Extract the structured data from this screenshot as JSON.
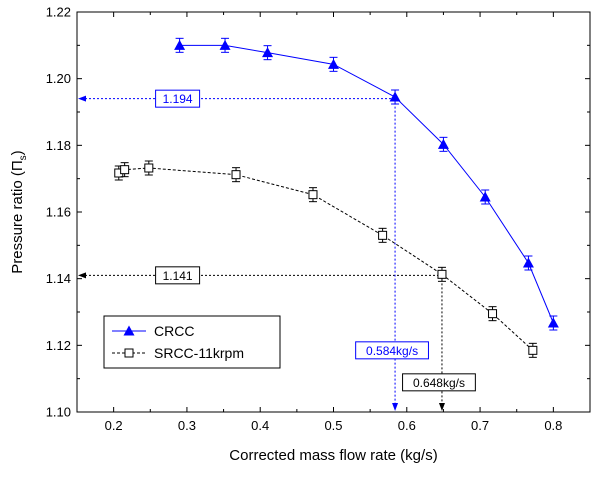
{
  "chart_data": {
    "type": "scatter",
    "xlabel": "Corrected mass flow rate (kg/s)",
    "ylabel_main": "Pressure ratio (Π",
    "ylabel_sub": "s",
    "ylabel_close": ")",
    "xlim": [
      0.15,
      0.85
    ],
    "ylim": [
      1.1,
      1.22
    ],
    "xticks": [
      "0.2",
      "0.3",
      "0.4",
      "0.5",
      "0.6",
      "0.7",
      "0.8"
    ],
    "yticks": [
      "1.10",
      "1.12",
      "1.14",
      "1.16",
      "1.18",
      "1.20",
      "1.22"
    ],
    "legend_position": "lower-left",
    "series": [
      {
        "name": "CRCC",
        "color": "#0000ff",
        "marker": "filled-triangle",
        "line": "solid",
        "points": [
          {
            "x": 0.29,
            "y": 1.21,
            "err": 0.0015
          },
          {
            "x": 0.352,
            "y": 1.21,
            "err": 0.0015
          },
          {
            "x": 0.41,
            "y": 1.2078,
            "err": 0.0015
          },
          {
            "x": 0.5,
            "y": 1.2043,
            "err": 0.0015
          },
          {
            "x": 0.584,
            "y": 1.1945,
            "err": 0.0015
          },
          {
            "x": 0.65,
            "y": 1.1803,
            "err": 0.0015
          },
          {
            "x": 0.707,
            "y": 1.1645,
            "err": 0.0015
          },
          {
            "x": 0.766,
            "y": 1.1447,
            "err": 0.0015
          },
          {
            "x": 0.8,
            "y": 1.1267,
            "err": 0.0015
          }
        ]
      },
      {
        "name": "SRCC-11krpm",
        "color": "#000000",
        "marker": "open-square",
        "line": "dashed",
        "points": [
          {
            "x": 0.207,
            "y": 1.1717,
            "err": 0.0015
          },
          {
            "x": 0.215,
            "y": 1.1727,
            "err": 0.0015
          },
          {
            "x": 0.248,
            "y": 1.1732,
            "err": 0.0015
          },
          {
            "x": 0.367,
            "y": 1.1712,
            "err": 0.0015
          },
          {
            "x": 0.472,
            "y": 1.1652,
            "err": 0.0015
          },
          {
            "x": 0.567,
            "y": 1.153,
            "err": 0.0015
          },
          {
            "x": 0.648,
            "y": 1.1413,
            "err": 0.0015
          },
          {
            "x": 0.717,
            "y": 1.1295,
            "err": 0.0015
          },
          {
            "x": 0.772,
            "y": 1.1185,
            "err": 0.0015
          }
        ]
      }
    ],
    "annotations": [
      {
        "label": "1.194",
        "x": 0.584,
        "y": 1.194,
        "label_x": 0.29,
        "color": "#0000ff",
        "color_box": "#0000ff"
      },
      {
        "label": "1.141",
        "x": 0.648,
        "y": 1.141,
        "label_x": 0.29,
        "color": "#000000",
        "color_box": "#000000"
      },
      {
        "label": "0.584kg/s",
        "x": 0.584,
        "y": 1.194,
        "label_y": 1.1185,
        "color": "#0000ff",
        "color_box": "#0000ff"
      },
      {
        "label": "0.648kg/s",
        "x": 0.648,
        "y": 1.141,
        "label_y": 1.1089,
        "color": "#000000",
        "color_box": "#000000"
      }
    ]
  }
}
